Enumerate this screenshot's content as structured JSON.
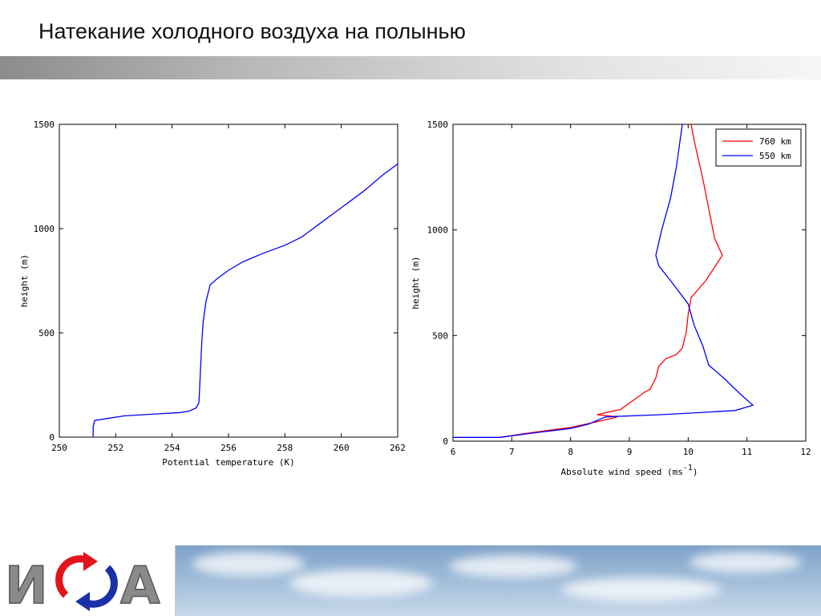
{
  "slide": {
    "title": "Натекание холодного воздуха на полынью"
  },
  "chart_data": [
    {
      "type": "line",
      "title": "",
      "xlabel": "Potential temperature (K)",
      "ylabel": "height (m)",
      "xlim": [
        250,
        262
      ],
      "ylim": [
        0,
        1500
      ],
      "xticks": [
        250,
        252,
        254,
        256,
        258,
        260,
        262
      ],
      "yticks": [
        0,
        500,
        1000,
        1500
      ],
      "xtick_labels": [
        "250",
        "252",
        "254",
        "256",
        "258",
        "260",
        "262"
      ],
      "ytick_labels": [
        "0",
        "500",
        "1000",
        "1500"
      ],
      "grid": false,
      "series": [
        {
          "color": "#0000ff",
          "x": [
            251.2,
            251.2,
            251.25,
            252.3,
            253.3,
            254.3,
            254.6,
            254.85,
            254.95,
            255.0,
            255.05,
            255.1,
            255.2,
            255.35,
            255.6,
            256.0,
            256.5,
            257.2,
            258.0,
            258.6,
            259.2,
            260.0,
            260.8,
            261.5,
            262.0
          ],
          "y": [
            0,
            50,
            80,
            102,
            110,
            118,
            125,
            140,
            165,
            300,
            450,
            550,
            650,
            730,
            760,
            800,
            840,
            880,
            920,
            960,
            1020,
            1100,
            1180,
            1260,
            1310
          ]
        }
      ]
    },
    {
      "type": "line",
      "title": "",
      "xlabel": "Absolute wind speed (ms",
      "xlabel_sup": "-1",
      "xlabel_tail": ")",
      "ylabel": "height (m)",
      "xlim": [
        6,
        12
      ],
      "ylim": [
        0,
        1500
      ],
      "xticks": [
        6,
        7,
        8,
        9,
        10,
        11,
        12
      ],
      "yticks": [
        0,
        500,
        1000,
        1500
      ],
      "xtick_labels": [
        "6",
        "7",
        "8",
        "9",
        "10",
        "11",
        "12"
      ],
      "ytick_labels": [
        "0",
        "500",
        "1000",
        "1500"
      ],
      "grid": false,
      "legend": "top-right",
      "series": [
        {
          "name": "760 km",
          "color": "#ff0000",
          "x": [
            6.8,
            7.2,
            7.6,
            8.0,
            8.5,
            8.8,
            8.45,
            8.6,
            8.85,
            9.05,
            9.25,
            9.35,
            9.45,
            9.5,
            9.62,
            9.8,
            9.9,
            9.97,
            10.0,
            10.05,
            10.3,
            10.58,
            10.45,
            10.35,
            10.25,
            10.12,
            10.05
          ],
          "y": [
            18,
            35,
            50,
            65,
            95,
            115,
            125,
            135,
            150,
            190,
            230,
            245,
            300,
            355,
            390,
            410,
            440,
            520,
            600,
            680,
            760,
            880,
            960,
            1100,
            1240,
            1400,
            1500
          ]
        },
        {
          "name": "550 km",
          "color": "#0000ff",
          "x": [
            6.0,
            6.8,
            7.4,
            8.0,
            8.3,
            8.6,
            9.5,
            10.2,
            10.8,
            11.1,
            10.9,
            10.6,
            10.35,
            10.25,
            10.1,
            10.0,
            9.7,
            9.5,
            9.45,
            9.55,
            9.7,
            9.8,
            9.9
          ],
          "y": [
            18,
            18,
            40,
            60,
            80,
            115,
            125,
            135,
            145,
            170,
            220,
            300,
            360,
            450,
            550,
            650,
            760,
            830,
            880,
            1000,
            1150,
            1300,
            1500
          ]
        }
      ]
    }
  ],
  "footer": {
    "logo_letters": [
      "И",
      "А"
    ],
    "colors": {
      "logo_gray": "#8a8a8a",
      "logo_red": "#e0151b",
      "logo_blue": "#1b2fa8",
      "footer_sky": "#9dbad8"
    }
  }
}
